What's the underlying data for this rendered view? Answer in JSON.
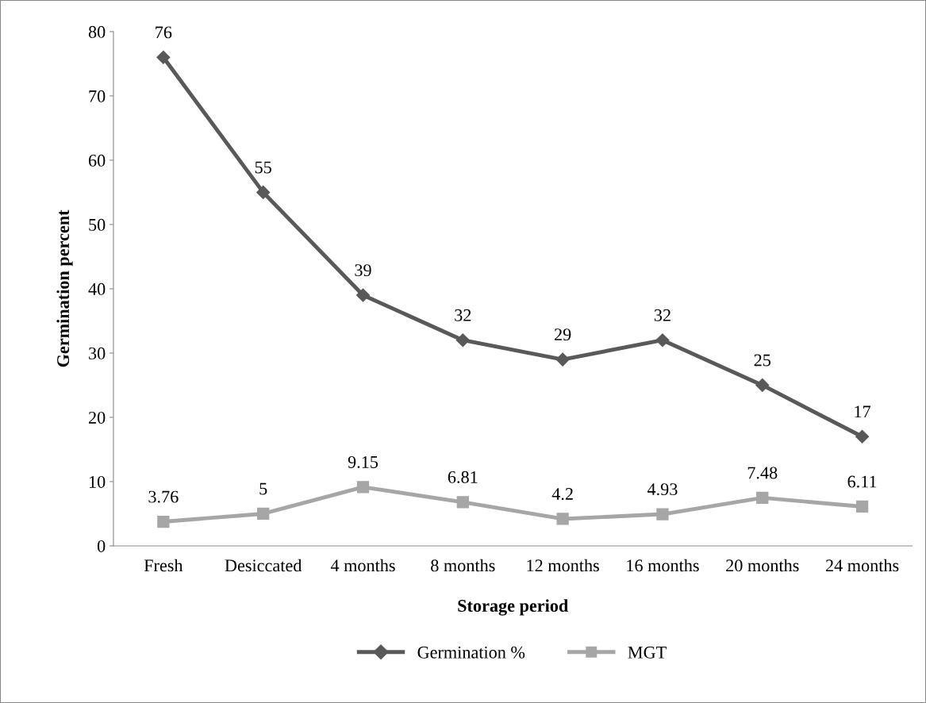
{
  "chart_data": {
    "type": "line",
    "xlabel": "Storage period",
    "ylabel": "Germination percent",
    "categories": [
      "Fresh",
      "Desiccated",
      "4 months",
      "8 months",
      "12 months",
      "16 months",
      "20 months",
      "24 months"
    ],
    "series": [
      {
        "name": "Germination %",
        "color": "#595959",
        "marker": "diamond",
        "values": [
          76,
          55,
          39,
          32,
          29,
          32,
          25,
          17
        ]
      },
      {
        "name": "MGT",
        "color": "#a6a6a6",
        "marker": "square",
        "values": [
          3.76,
          5,
          9.15,
          6.81,
          4.2,
          4.93,
          7.48,
          6.11
        ]
      }
    ],
    "ylim": [
      0,
      80
    ],
    "yticks": [
      0,
      10,
      20,
      30,
      40,
      50,
      60,
      70,
      80
    ],
    "data_labels": true,
    "grid": false,
    "legend": "bottom",
    "line_style": "solid"
  }
}
